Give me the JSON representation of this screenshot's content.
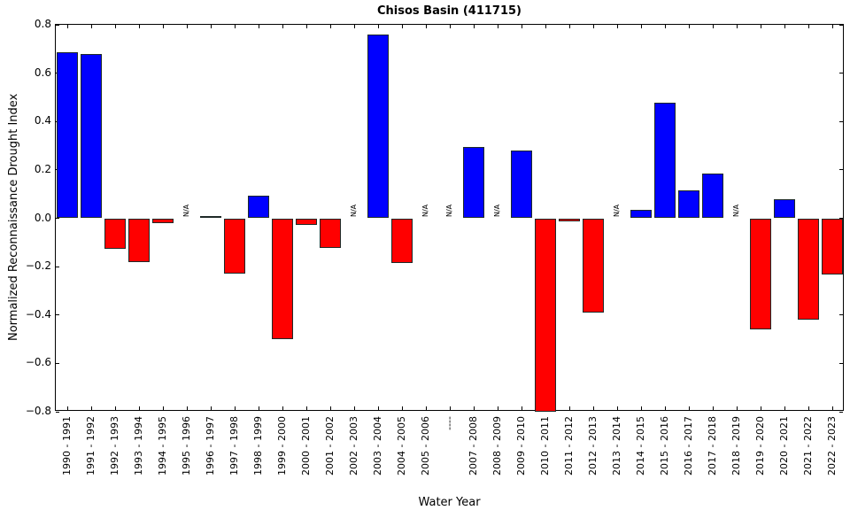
{
  "chart_data": {
    "type": "bar",
    "title": "Chisos Basin (411715)",
    "xlabel": "Water Year",
    "ylabel": "Normalized Reconnaissance Drought Index",
    "ylim": [
      -0.8,
      0.8
    ],
    "yticks": [
      -0.8,
      -0.6,
      -0.4,
      -0.2,
      0.0,
      0.2,
      0.4,
      0.6,
      0.8
    ],
    "ytick_labels": [
      "−0.8",
      "−0.6",
      "−0.4",
      "−0.2",
      "0.0",
      "0.2",
      "0.4",
      "0.6",
      "0.8"
    ],
    "grid": false,
    "legend": null,
    "colors": {
      "positive": "#0000ff",
      "negative": "#ff0000"
    },
    "missing_label": "N/A",
    "categories": [
      "1990 - 1991",
      "1991 - 1992",
      "1992 - 1993",
      "1993 - 1994",
      "1994 - 1995",
      "1995 - 1996",
      "1996 - 1997",
      "1997 - 1998",
      "1998 - 1999",
      "1999 - 2000",
      "2000 - 2001",
      "2001 - 2002",
      "2002 - 2003",
      "2003 - 2004",
      "2004 - 2005",
      "2005 - 2006",
      "----",
      "2007 - 2008",
      "2008 - 2009",
      "2009 - 2010",
      "2010 - 2011",
      "2011 - 2012",
      "2012 - 2013",
      "2013 - 2014",
      "2014 - 2015",
      "2015 - 2016",
      "2016 - 2017",
      "2017 - 2018",
      "2018 - 2019",
      "2019 - 2020",
      "2020 - 2021",
      "2021 - 2022",
      "2022 - 2023"
    ],
    "values": [
      0.686,
      0.68,
      -0.126,
      -0.183,
      -0.021,
      null,
      0.01,
      -0.23,
      0.093,
      -0.5,
      -0.027,
      -0.122,
      null,
      0.761,
      -0.185,
      null,
      null,
      0.295,
      null,
      0.28,
      -0.8,
      -0.013,
      -0.39,
      null,
      0.036,
      0.478,
      0.114,
      0.184,
      null,
      -0.459,
      0.079,
      -0.42,
      -0.234
    ]
  }
}
